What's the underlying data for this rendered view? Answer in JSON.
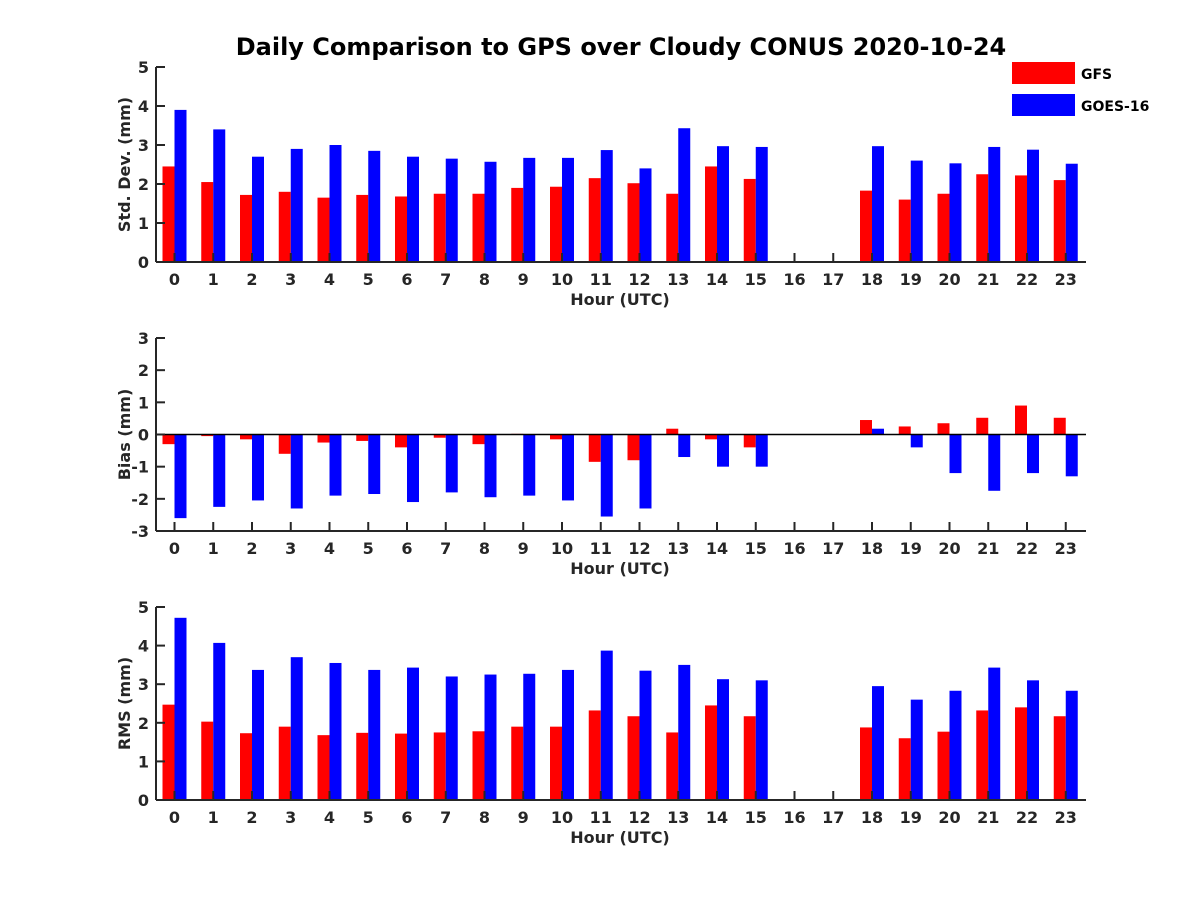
{
  "chart_data": {
    "title": "Daily Comparison to GPS over Cloudy CONUS 2020-10-24",
    "type": "bar",
    "categories": [
      "0",
      "1",
      "2",
      "3",
      "4",
      "5",
      "6",
      "7",
      "8",
      "9",
      "10",
      "11",
      "12",
      "13",
      "14",
      "15",
      "16",
      "17",
      "18",
      "19",
      "20",
      "21",
      "22",
      "23"
    ],
    "legend": {
      "placement": "top-right",
      "entries": [
        {
          "name": "GFS",
          "color": "#ff0000"
        },
        {
          "name": "GOES-16",
          "color": "#0000ff"
        }
      ]
    },
    "panels": [
      {
        "id": "std",
        "xlabel": "Hour (UTC)",
        "ylabel": "Std. Dev. (mm)",
        "ylim": [
          0,
          5
        ],
        "yticks": [
          "0",
          "1",
          "2",
          "3",
          "4",
          "5"
        ],
        "series": [
          {
            "name": "GFS",
            "color": "#ff0000",
            "values": [
              2.45,
              2.05,
              1.72,
              1.8,
              1.65,
              1.72,
              1.68,
              1.75,
              1.75,
              1.9,
              1.93,
              2.15,
              2.02,
              1.75,
              2.45,
              2.13,
              null,
              null,
              1.83,
              1.6,
              1.75,
              2.25,
              2.22,
              2.1
            ]
          },
          {
            "name": "GOES-16",
            "color": "#0000ff",
            "values": [
              3.9,
              3.4,
              2.7,
              2.9,
              3.0,
              2.85,
              2.7,
              2.65,
              2.57,
              2.67,
              2.67,
              2.87,
              2.4,
              3.43,
              2.97,
              2.95,
              null,
              null,
              2.97,
              2.6,
              2.53,
              2.95,
              2.88,
              2.52
            ]
          }
        ]
      },
      {
        "id": "bias",
        "xlabel": "Hour (UTC)",
        "ylabel": "Bias (mm)",
        "ylim": [
          -3,
          3
        ],
        "yticks": [
          "-3",
          "-2",
          "-1",
          "0",
          "1",
          "2",
          "3"
        ],
        "series": [
          {
            "name": "GFS",
            "color": "#ff0000",
            "values": [
              -0.3,
              -0.05,
              -0.15,
              -0.6,
              -0.25,
              -0.2,
              -0.4,
              -0.1,
              -0.3,
              0.02,
              -0.15,
              -0.85,
              -0.8,
              0.18,
              -0.15,
              -0.4,
              null,
              null,
              0.45,
              0.25,
              0.35,
              0.52,
              0.9,
              0.52
            ]
          },
          {
            "name": "GOES-16",
            "color": "#0000ff",
            "values": [
              -2.6,
              -2.25,
              -2.05,
              -2.3,
              -1.9,
              -1.85,
              -2.1,
              -1.8,
              -1.95,
              -1.9,
              -2.05,
              -2.55,
              -2.3,
              -0.7,
              -1.0,
              -1.0,
              null,
              null,
              0.18,
              -0.4,
              -1.2,
              -1.75,
              -1.2,
              -1.3
            ]
          }
        ]
      },
      {
        "id": "rms",
        "xlabel": "Hour (UTC)",
        "ylabel": "RMS (mm)",
        "ylim": [
          0,
          5
        ],
        "yticks": [
          "0",
          "1",
          "2",
          "3",
          "4",
          "5"
        ],
        "series": [
          {
            "name": "GFS",
            "color": "#ff0000",
            "values": [
              2.47,
              2.03,
              1.73,
              1.9,
              1.68,
              1.74,
              1.72,
              1.75,
              1.78,
              1.9,
              1.9,
              2.32,
              2.17,
              1.75,
              2.45,
              2.17,
              null,
              null,
              1.88,
              1.6,
              1.77,
              2.32,
              2.4,
              2.17
            ]
          },
          {
            "name": "GOES-16",
            "color": "#0000ff",
            "values": [
              4.72,
              4.07,
              3.37,
              3.7,
              3.55,
              3.37,
              3.43,
              3.2,
              3.25,
              3.27,
              3.37,
              3.87,
              3.35,
              3.5,
              3.13,
              3.1,
              null,
              null,
              2.95,
              2.6,
              2.83,
              3.43,
              3.1,
              2.83
            ]
          }
        ]
      }
    ]
  }
}
